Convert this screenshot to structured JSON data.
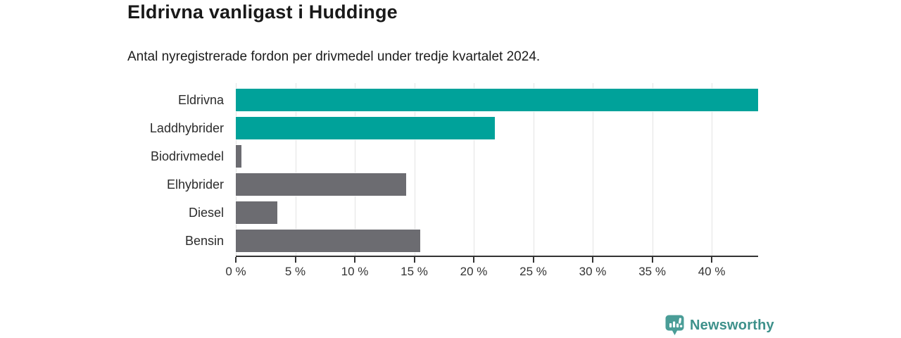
{
  "header": {
    "title": "Eldrivna vanligast i Huddinge",
    "subtitle": "Antal nyregistrerade fordon per drivmedel under tredje kvartalet 2024."
  },
  "chart_data": {
    "type": "bar",
    "orientation": "horizontal",
    "title": "Eldrivna vanligast i Huddinge",
    "subtitle": "Antal nyregistrerade fordon per drivmedel under tredje kvartalet 2024.",
    "categories": [
      "Eldrivna",
      "Laddhybrider",
      "Biodrivmedel",
      "Elhybrider",
      "Diesel",
      "Bensin"
    ],
    "values": [
      43.9,
      21.8,
      0.5,
      14.3,
      3.5,
      15.5
    ],
    "unit": "%",
    "xlim": [
      0,
      43.9
    ],
    "xticks": [
      0,
      5,
      10,
      15,
      20,
      25,
      30,
      35,
      40
    ],
    "xtick_labels": [
      "0 %",
      "5 %",
      "10 %",
      "15 %",
      "20 %",
      "25 %",
      "30 %",
      "35 %",
      "40 %"
    ],
    "grid": true,
    "legend": "none",
    "colors": {
      "highlight": "#00a29a",
      "default": "#6c6c71",
      "gridline": "#e3e3e3",
      "axis": "#333333"
    },
    "bar_colors": [
      "#00a29a",
      "#00a29a",
      "#6c6c71",
      "#6c6c71",
      "#6c6c71",
      "#6c6c71"
    ]
  },
  "footer": {
    "brand": "Newsworthy",
    "brand_color": "#3e918b",
    "icon_color": "#4a9d97",
    "logo_icon": "bar-chart-speech-bubble-icon"
  }
}
